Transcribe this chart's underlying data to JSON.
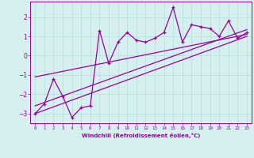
{
  "xlabel": "Windchill (Refroidissement éolien,°C)",
  "background_color": "#d6f0f0",
  "grid_color": "#b8e0e0",
  "line_color": "#990099",
  "data_x": [
    0,
    1,
    2,
    3,
    4,
    5,
    6,
    7,
    8,
    9,
    10,
    11,
    12,
    13,
    14,
    15,
    16,
    17,
    18,
    19,
    20,
    21,
    22,
    23
  ],
  "data_y": [
    -3.0,
    -2.5,
    -1.2,
    -2.1,
    -3.2,
    -2.7,
    -2.6,
    1.3,
    -0.4,
    0.7,
    1.2,
    0.8,
    0.7,
    0.9,
    1.2,
    2.5,
    0.7,
    1.6,
    1.5,
    1.4,
    1.0,
    1.8,
    0.9,
    1.2
  ],
  "reg_line1_x": [
    0,
    23
  ],
  "reg_line1_y": [
    -2.6,
    1.35
  ],
  "reg_line2_x": [
    0,
    23
  ],
  "reg_line2_y": [
    -1.1,
    1.1
  ],
  "reg_line3_x": [
    0,
    23
  ],
  "reg_line3_y": [
    -3.0,
    1.0
  ],
  "xlim": [
    -0.5,
    23.5
  ],
  "ylim": [
    -3.5,
    2.8
  ],
  "yticks": [
    -3,
    -2,
    -1,
    0,
    1,
    2
  ],
  "xticks": [
    0,
    1,
    2,
    3,
    4,
    5,
    6,
    7,
    8,
    9,
    10,
    11,
    12,
    13,
    14,
    15,
    16,
    17,
    18,
    19,
    20,
    21,
    22,
    23
  ]
}
